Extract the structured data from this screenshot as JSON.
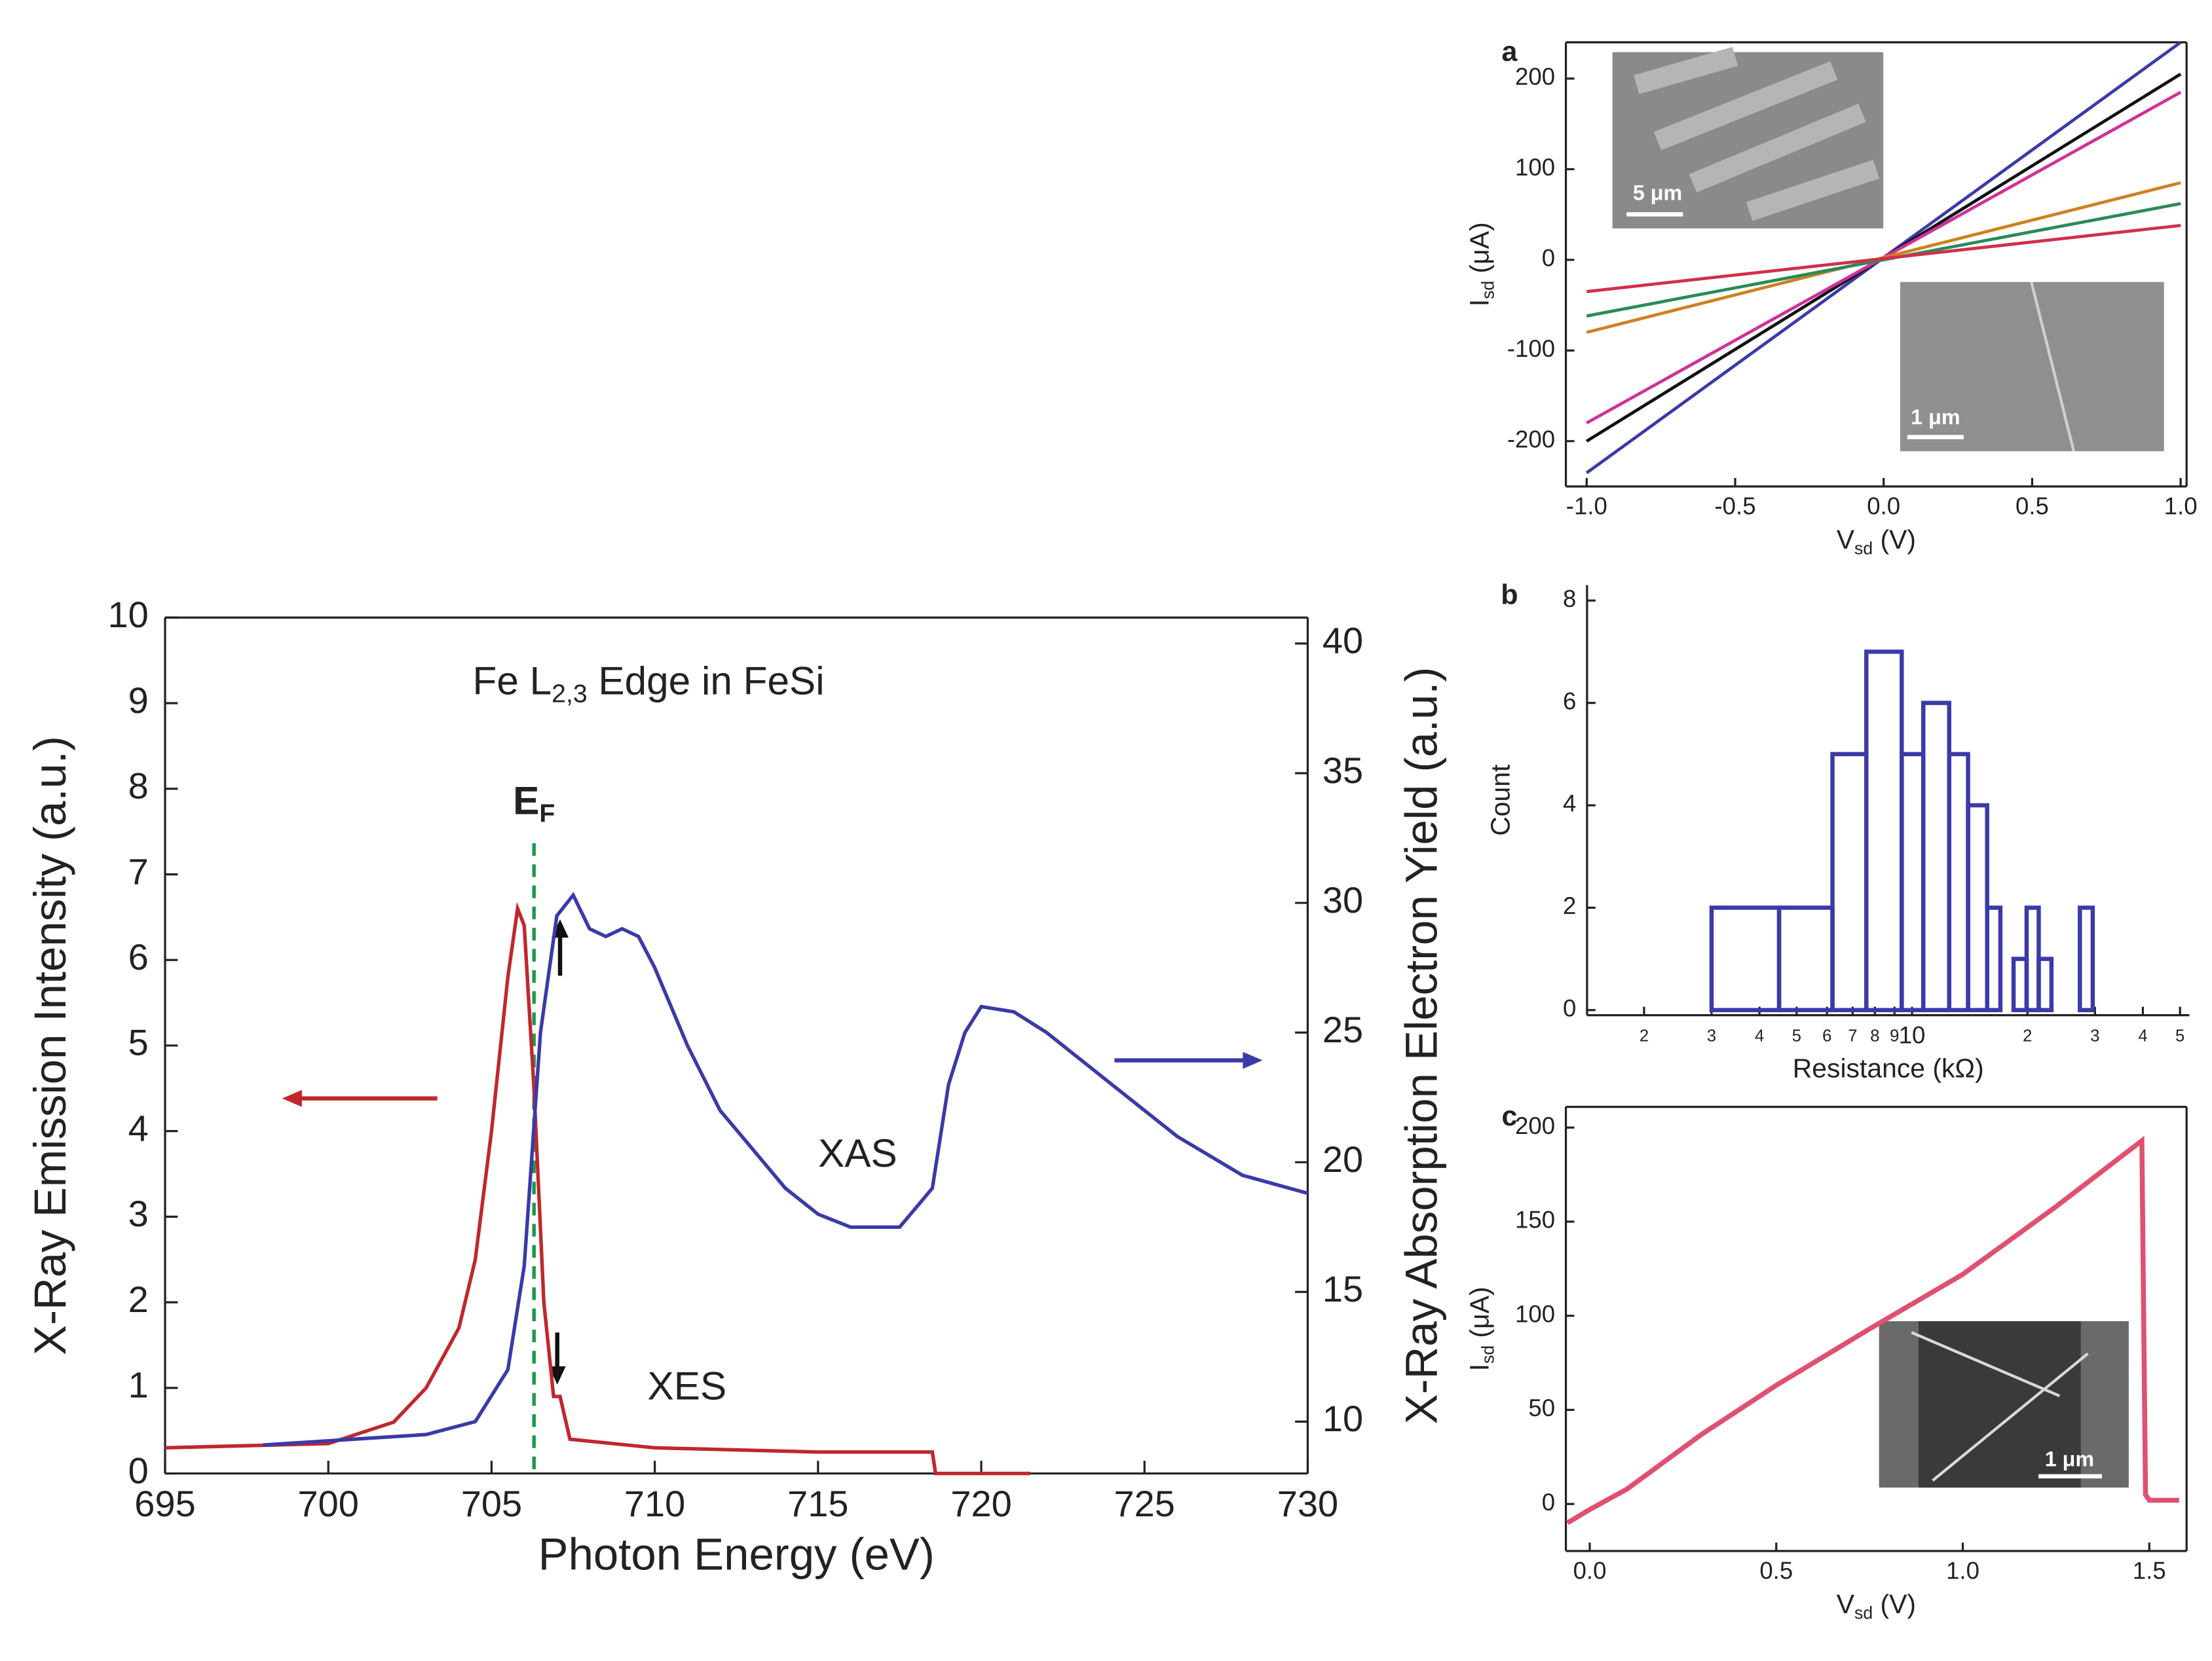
{
  "chart_data": [
    {
      "type": "line",
      "title": [
        "Fe L",
        "2,3",
        " Edge in FeSi"
      ],
      "xlabel": "Photon Energy (eV)",
      "ylabel": "X-Ray Emission Intensity (a.u.)",
      "y2label": "X-Ray Absorption Electron Yield (a.u.)",
      "xlim": [
        695,
        730
      ],
      "ylim": [
        0,
        10
      ],
      "y2lim": [
        8,
        41
      ],
      "xticks": [
        695,
        700,
        705,
        710,
        715,
        720,
        725,
        730
      ],
      "yticks": [
        0,
        1,
        2,
        3,
        4,
        5,
        6,
        7,
        8,
        9,
        10
      ],
      "y2ticks": [
        10,
        15,
        20,
        25,
        30,
        35,
        40
      ],
      "fermi_label": [
        "E",
        "F"
      ],
      "fermi_energy": 706.3,
      "fermi_color": "#1a9a4a",
      "series": [
        {
          "name": "XES",
          "color": "#c0272d",
          "x": [
            695,
            700,
            702,
            703,
            704,
            704.5,
            705,
            705.5,
            705.8,
            706,
            706.3,
            706.6,
            706.9,
            707.1,
            707.4,
            710,
            715,
            718.5,
            718.6,
            721.5
          ],
          "values": [
            0.3,
            0.35,
            0.6,
            1.0,
            1.7,
            2.5,
            4.0,
            5.8,
            6.6,
            6.4,
            4.5,
            2.0,
            0.9,
            0.9,
            0.4,
            0.3,
            0.25,
            0.25,
            0.0,
            0.0
          ]
        },
        {
          "name": "XAS",
          "color": "#3a3aa8",
          "axis": "y2",
          "x": [
            698,
            703,
            704.5,
            705.5,
            706,
            706.5,
            707,
            707.5,
            708,
            708.5,
            709,
            709.5,
            710,
            711,
            712,
            713,
            714,
            715,
            716,
            717.5,
            718.5,
            719,
            719.5,
            720,
            721,
            722,
            724,
            726,
            728,
            730
          ],
          "values": [
            9.1,
            9.5,
            10,
            12,
            16,
            25,
            29.5,
            30.3,
            29,
            28.7,
            29,
            28.7,
            27.5,
            24.5,
            22,
            20.5,
            19,
            18,
            17.5,
            17.5,
            19,
            23,
            25,
            26,
            25.8,
            25,
            23,
            21,
            19.5,
            18.8
          ]
        }
      ]
    },
    {
      "type": "line",
      "panel": "a",
      "xlabel": [
        "V",
        "sd",
        " (V)"
      ],
      "ylabel": [
        "I",
        "sd",
        " (μA)"
      ],
      "xlim": [
        -1.07,
        1.02
      ],
      "ylim": [
        -250,
        240
      ],
      "xticks": [
        {
          "value": -1,
          "label": "-1.0"
        },
        -0.5,
        {
          "value": 0,
          "label": "0.0"
        },
        0.5,
        {
          "value": 1,
          "label": "1.0"
        }
      ],
      "yticks": [
        -200,
        -100,
        0,
        100,
        200
      ],
      "inset_labels": [
        "5 μm",
        "1 μm"
      ],
      "series": [
        {
          "color": "#3a3aa8",
          "x": [
            -1,
            1
          ],
          "values": [
            -235,
            240
          ]
        },
        {
          "color": "#111111",
          "x": [
            -1,
            1
          ],
          "values": [
            -200,
            205
          ]
        },
        {
          "color": "#d0309a",
          "x": [
            -1,
            1
          ],
          "values": [
            -180,
            185
          ]
        },
        {
          "color": "#d08020",
          "x": [
            -1,
            1
          ],
          "values": [
            -80,
            85
          ]
        },
        {
          "color": "#2a8a5a",
          "x": [
            -1,
            1
          ],
          "values": [
            -62,
            62
          ]
        },
        {
          "color": "#d0304a",
          "x": [
            -1,
            1
          ],
          "values": [
            -35,
            38
          ]
        }
      ]
    },
    {
      "type": "histogram",
      "panel": "b",
      "xlabel": "Resistance (kΩ)",
      "ylabel": "Count",
      "xlog": true,
      "xlim": [
        1.42,
        52.9
      ],
      "ylim": [
        -0.1,
        8.3
      ],
      "xticks": [
        2,
        3,
        4,
        5,
        6,
        7,
        8,
        9,
        10,
        {
          "value": 20,
          "label": "2"
        },
        {
          "value": 30,
          "label": "3"
        },
        {
          "value": 40,
          "label": "4"
        },
        {
          "value": 50,
          "label": "5"
        }
      ],
      "yticks": [
        0,
        2,
        4,
        6,
        8
      ],
      "color": "#3a3aa8",
      "bins": [
        3,
        4.5,
        6.2,
        7.6,
        9.4,
        10.7,
        12.5,
        14,
        15.7,
        17,
        18.4,
        19.9,
        21.4,
        23.1,
        27.4,
        29.6
      ],
      "values": [
        2,
        2,
        5,
        7,
        5,
        6,
        5,
        4,
        2,
        0,
        1,
        2,
        1,
        0,
        2
      ]
    },
    {
      "type": "line",
      "panel": "c",
      "xlabel": [
        "V",
        "sd",
        " (V)"
      ],
      "ylabel": [
        "I",
        "sd",
        " (μA)"
      ],
      "xlim": [
        -0.064,
        1.6
      ],
      "ylim": [
        -25,
        211
      ],
      "xticks": [
        {
          "value": 0,
          "label": "0.0"
        },
        0.5,
        {
          "value": 1,
          "label": "1.0"
        },
        1.5
      ],
      "yticks": [
        0,
        50,
        100,
        150,
        200
      ],
      "inset_labels": [
        "1 μm"
      ],
      "series": [
        {
          "color": "#e05070",
          "x": [
            -0.06,
            0,
            0.1,
            0.3,
            0.5,
            0.75,
            1.0,
            1.25,
            1.48,
            1.49,
            1.5,
            1.58
          ],
          "values": [
            -10,
            -3,
            8,
            37,
            63,
            93,
            122,
            158,
            193,
            5,
            2,
            2
          ]
        }
      ]
    }
  ]
}
